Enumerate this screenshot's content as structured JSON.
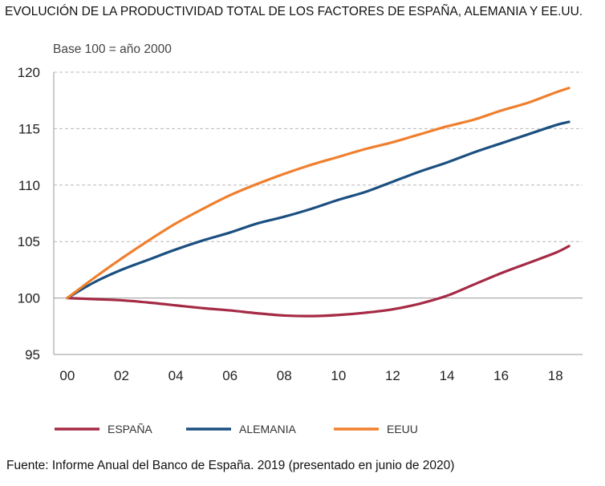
{
  "page_title": "EVOLUCIÓN DE LA PRODUCTIVIDAD TOTAL DE LOS FACTORES DE ESPAÑA, ALEMANIA Y EE.UU.",
  "source_note": "Fuente: Informe Anual del Banco de España. 2019 (presentado en junio de 2020)",
  "chart_data": {
    "type": "line",
    "title": "EVOLUCIÓN DE LA PRODUCTIVIDAD TOTAL DE LOS FACTORES DE ESPAÑA, ALEMANIA Y EE.UU.",
    "subtitle": "Base 100 = año 2000",
    "xlabel": "",
    "ylabel": "",
    "x_ticks": [
      "00",
      "02",
      "04",
      "06",
      "08",
      "10",
      "12",
      "14",
      "16",
      "18"
    ],
    "x_tick_values": [
      2000,
      2002,
      2004,
      2006,
      2008,
      2010,
      2012,
      2014,
      2016,
      2018
    ],
    "y_ticks": [
      "95",
      "100",
      "105",
      "110",
      "115",
      "120"
    ],
    "ylim": [
      95,
      120
    ],
    "xlim": [
      1999.5,
      2019
    ],
    "grid": "horizontal dashed",
    "legend": "bottom",
    "x": [
      2000,
      2001,
      2002,
      2003,
      2004,
      2005,
      2006,
      2007,
      2008,
      2009,
      2010,
      2011,
      2012,
      2013,
      2014,
      2015,
      2016,
      2017,
      2018,
      2018.5
    ],
    "series": [
      {
        "name": "ESPAÑA",
        "color": "#A52A45",
        "values": [
          100.0,
          99.9,
          99.8,
          99.6,
          99.35,
          99.1,
          98.9,
          98.65,
          98.45,
          98.4,
          98.5,
          98.7,
          99.0,
          99.5,
          100.2,
          101.2,
          102.2,
          103.1,
          104.0,
          104.6
        ]
      },
      {
        "name": "ALEMANIA",
        "color": "#1B4F80",
        "values": [
          100.0,
          101.4,
          102.5,
          103.4,
          104.3,
          105.1,
          105.8,
          106.6,
          107.2,
          107.9,
          108.7,
          109.4,
          110.3,
          111.2,
          112.0,
          112.9,
          113.7,
          114.5,
          115.3,
          115.6
        ]
      },
      {
        "name": "EEUU",
        "color": "#F07F2D",
        "values": [
          100.0,
          101.8,
          103.5,
          105.1,
          106.6,
          107.9,
          109.1,
          110.1,
          111.0,
          111.8,
          112.5,
          113.2,
          113.8,
          114.5,
          115.2,
          115.8,
          116.6,
          117.3,
          118.2,
          118.6
        ]
      }
    ]
  }
}
